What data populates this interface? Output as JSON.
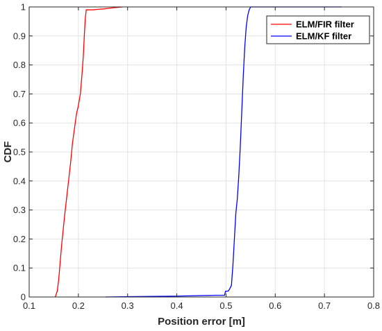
{
  "chart_data": {
    "type": "line",
    "xlabel": "Position error [m]",
    "ylabel": "CDF",
    "xlim": [
      0.1,
      0.8
    ],
    "ylim": [
      0,
      1
    ],
    "xticks": [
      "0.1",
      "0.2",
      "0.3",
      "0.4",
      "0.5",
      "0.6",
      "0.7",
      "0.8"
    ],
    "yticks": [
      "0",
      "0.1",
      "0.2",
      "0.3",
      "0.4",
      "0.5",
      "0.6",
      "0.7",
      "0.8",
      "0.9",
      "1"
    ],
    "grid": true,
    "legend_position": "top-right",
    "series": [
      {
        "name": "ELM/FIR filter",
        "color": "#ff0000",
        "x": [
          0.153,
          0.157,
          0.16,
          0.163,
          0.166,
          0.169,
          0.172,
          0.176,
          0.18,
          0.184,
          0.188,
          0.192,
          0.196,
          0.2,
          0.204,
          0.207,
          0.21,
          0.212,
          0.214,
          0.216,
          0.22,
          0.23,
          0.24,
          0.25,
          0.26,
          0.275,
          0.29
        ],
        "y": [
          0.0,
          0.02,
          0.06,
          0.12,
          0.18,
          0.23,
          0.28,
          0.34,
          0.4,
          0.46,
          0.53,
          0.58,
          0.63,
          0.66,
          0.7,
          0.76,
          0.83,
          0.9,
          0.96,
          0.99,
          0.99,
          0.99,
          0.992,
          0.993,
          0.995,
          0.998,
          1.0
        ]
      },
      {
        "name": "ELM/KF filter",
        "color": "#0000ff",
        "x": [
          0.255,
          0.3,
          0.35,
          0.4,
          0.45,
          0.48,
          0.497,
          0.499,
          0.502,
          0.505,
          0.508,
          0.511,
          0.514,
          0.517,
          0.52,
          0.523,
          0.526,
          0.529,
          0.532,
          0.535,
          0.538,
          0.541,
          0.544,
          0.547,
          0.55,
          0.6,
          0.65,
          0.7,
          0.735
        ],
        "y": [
          0.0,
          0.001,
          0.002,
          0.003,
          0.005,
          0.006,
          0.006,
          0.02,
          0.02,
          0.021,
          0.03,
          0.04,
          0.11,
          0.2,
          0.29,
          0.34,
          0.42,
          0.52,
          0.64,
          0.76,
          0.86,
          0.93,
          0.97,
          0.99,
          1.0,
          1.0,
          1.0,
          1.0,
          1.0
        ]
      }
    ]
  }
}
